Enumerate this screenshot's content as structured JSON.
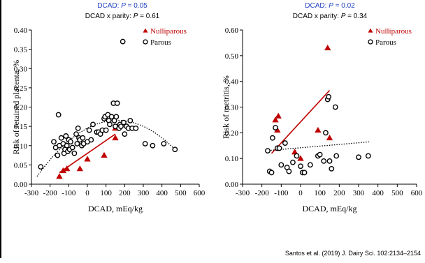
{
  "citation": "Santos et al. (2019) J. Dairy Sci. 102:2134–2154",
  "colors": {
    "nulliparous": "#c00000",
    "parous": "#000000",
    "stat_blue": "#1f3fbf"
  },
  "chart_data": [
    {
      "type": "scatter",
      "stat_line_1": "DCAD: P = 0.05",
      "stat_line_2": "DCAD x parity: P = 0.61",
      "xlabel": "DCAD, mEq/kg",
      "ylabel": "Risk of retained placenta, %",
      "xlim": [
        -300,
        600
      ],
      "ylim": [
        0,
        0.4
      ],
      "x_ticks": [
        -300,
        -200,
        -100,
        0,
        100,
        200,
        300,
        400,
        500,
        600
      ],
      "x_tick_labels": [
        "-300",
        "-200",
        "-100",
        "0",
        "100",
        "200",
        "300",
        "400",
        "500",
        "600"
      ],
      "y_ticks": [
        0,
        0.05,
        0.1,
        0.15,
        0.2,
        0.25,
        0.3,
        0.35,
        0.4
      ],
      "y_tick_labels": [
        "0.00",
        "0.05",
        "0.10",
        "0.15",
        "0.20",
        "0.25",
        "0.30",
        "0.35",
        "0.40"
      ],
      "grid": false,
      "legend_position": "top-right",
      "series": [
        {
          "name": "Nulliparous",
          "marker": "triangle",
          "points": [
            [
              -150,
              0.02
            ],
            [
              -130,
              0.035
            ],
            [
              -110,
              0.04
            ],
            [
              -40,
              0.04
            ],
            [
              0,
              0.065
            ],
            [
              90,
              0.075
            ],
            [
              150,
              0.12
            ],
            [
              150,
              0.145
            ]
          ]
        },
        {
          "name": "Parous",
          "marker": "circle",
          "points": [
            [
              -250,
              0.045
            ],
            [
              -180,
              0.11
            ],
            [
              -170,
              0.095
            ],
            [
              -160,
              0.075
            ],
            [
              -155,
              0.18
            ],
            [
              -150,
              0.1
            ],
            [
              -140,
              0.12
            ],
            [
              -130,
              0.105
            ],
            [
              -125,
              0.08
            ],
            [
              -120,
              0.09
            ],
            [
              -115,
              0.125
            ],
            [
              -110,
              0.1
            ],
            [
              -105,
              0.085
            ],
            [
              -100,
              0.115
            ],
            [
              -95,
              0.09
            ],
            [
              -90,
              0.11
            ],
            [
              -80,
              0.095
            ],
            [
              -70,
              0.08
            ],
            [
              -60,
              0.13
            ],
            [
              -55,
              0.105
            ],
            [
              -50,
              0.145
            ],
            [
              -45,
              0.12
            ],
            [
              -40,
              0.115
            ],
            [
              -30,
              0.1
            ],
            [
              -25,
              0.12
            ],
            [
              -20,
              0.105
            ],
            [
              0,
              0.11
            ],
            [
              10,
              0.14
            ],
            [
              20,
              0.115
            ],
            [
              30,
              0.155
            ],
            [
              50,
              0.135
            ],
            [
              60,
              0.135
            ],
            [
              70,
              0.13
            ],
            [
              80,
              0.14
            ],
            [
              90,
              0.17
            ],
            [
              95,
              0.175
            ],
            [
              100,
              0.14
            ],
            [
              110,
              0.18
            ],
            [
              115,
              0.165
            ],
            [
              120,
              0.155
            ],
            [
              130,
              0.175
            ],
            [
              140,
              0.21
            ],
            [
              145,
              0.165
            ],
            [
              150,
              0.15
            ],
            [
              155,
              0.175
            ],
            [
              160,
              0.21
            ],
            [
              170,
              0.145
            ],
            [
              175,
              0.155
            ],
            [
              180,
              0.15
            ],
            [
              190,
              0.37
            ],
            [
              195,
              0.16
            ],
            [
              200,
              0.13
            ],
            [
              210,
              0.15
            ],
            [
              220,
              0.145
            ],
            [
              230,
              0.165
            ],
            [
              240,
              0.145
            ],
            [
              260,
              0.145
            ],
            [
              310,
              0.105
            ],
            [
              350,
              0.1
            ],
            [
              410,
              0.105
            ],
            [
              470,
              0.09
            ]
          ]
        }
      ],
      "fits": [
        {
          "series": "Nulliparous",
          "style": "solid",
          "x": [
            -150,
            150
          ],
          "y": [
            0.03,
            0.13
          ]
        },
        {
          "series": "Parous",
          "style": "dotted",
          "x": [
            -270,
            300,
            480
          ],
          "y": [
            0.02,
            0.15,
            0.085
          ],
          "shape": "quadratic"
        }
      ]
    },
    {
      "type": "scatter",
      "stat_line_1": "DCAD: P = 0.02",
      "stat_line_2": "DCAD x parity: P = 0.34",
      "xlabel": "DCAD, mEq/kg",
      "ylabel": "Risk of metritis, %",
      "xlim": [
        -300,
        600
      ],
      "ylim": [
        0,
        0.6
      ],
      "x_ticks": [
        -300,
        -200,
        -100,
        0,
        100,
        200,
        300,
        400,
        500,
        600
      ],
      "x_tick_labels": [
        "-300",
        "-200",
        "-100",
        "0",
        "100",
        "200",
        "300",
        "400",
        "500",
        "600"
      ],
      "y_ticks": [
        0,
        0.1,
        0.2,
        0.3,
        0.4,
        0.5,
        0.6
      ],
      "y_tick_labels": [
        "0.00",
        "0.10",
        "0.20",
        "0.30",
        "0.40",
        "0.50",
        "0.60"
      ],
      "grid": false,
      "legend_position": "top-right",
      "series": [
        {
          "name": "Nulliparous",
          "marker": "triangle",
          "points": [
            [
              -130,
              0.25
            ],
            [
              -115,
              0.265
            ],
            [
              -120,
              0.21
            ],
            [
              -120,
              0.14
            ],
            [
              -30,
              0.125
            ],
            [
              0,
              0.1
            ],
            [
              90,
              0.21
            ],
            [
              140,
              0.53
            ],
            [
              150,
              0.18
            ]
          ]
        },
        {
          "name": "Parous",
          "marker": "circle",
          "points": [
            [
              -170,
              0.13
            ],
            [
              -160,
              0.05
            ],
            [
              -150,
              0.045
            ],
            [
              -145,
              0.18
            ],
            [
              -130,
              0.22
            ],
            [
              -120,
              0.14
            ],
            [
              -110,
              0.14
            ],
            [
              -100,
              0.075
            ],
            [
              -80,
              0.16
            ],
            [
              -70,
              0.065
            ],
            [
              -60,
              0.05
            ],
            [
              -40,
              0.085
            ],
            [
              -20,
              0.11
            ],
            [
              0,
              0.07
            ],
            [
              10,
              0.045
            ],
            [
              20,
              0.045
            ],
            [
              50,
              0.075
            ],
            [
              90,
              0.11
            ],
            [
              100,
              0.115
            ],
            [
              120,
              0.09
            ],
            [
              130,
              0.2
            ],
            [
              140,
              0.33
            ],
            [
              145,
              0.34
            ],
            [
              150,
              0.09
            ],
            [
              160,
              0.06
            ],
            [
              180,
              0.3
            ],
            [
              185,
              0.11
            ],
            [
              300,
              0.105
            ],
            [
              350,
              0.11
            ]
          ]
        }
      ],
      "fits": [
        {
          "series": "Nulliparous",
          "style": "solid",
          "x": [
            -150,
            150
          ],
          "y": [
            0.12,
            0.365
          ]
        },
        {
          "series": "Parous",
          "style": "dotted",
          "x": [
            -180,
            360
          ],
          "y": [
            0.13,
            0.165
          ]
        }
      ]
    }
  ]
}
